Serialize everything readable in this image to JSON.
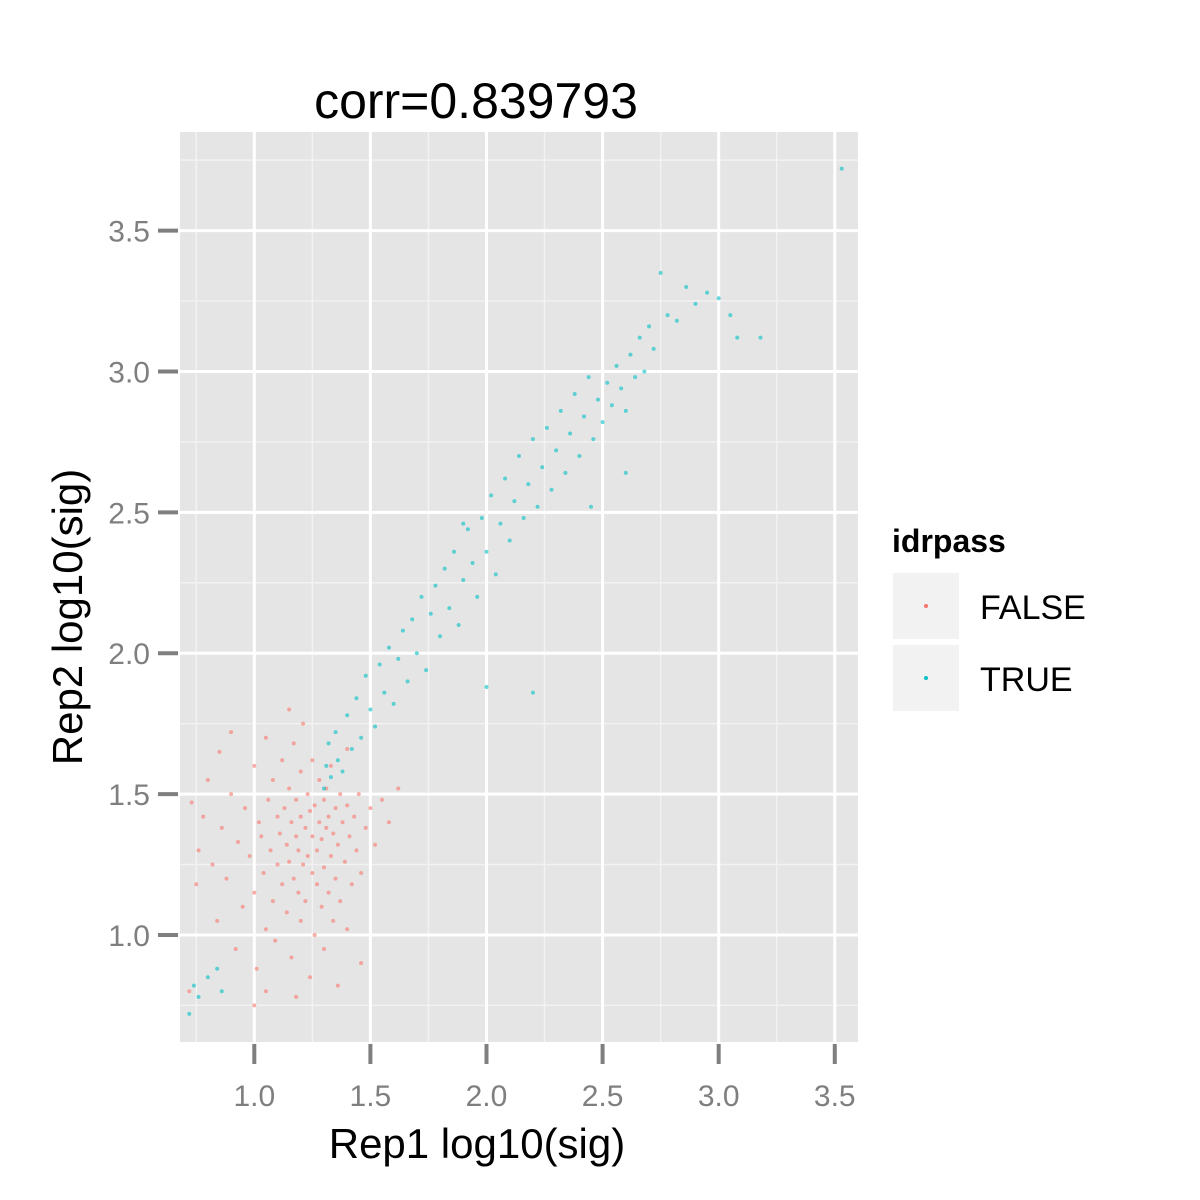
{
  "chart_data": {
    "type": "scatter",
    "title": "corr=0.839793",
    "xlabel": "Rep1 log10(sig)",
    "ylabel": "Rep2 log10(sig)",
    "xlim": [
      0.68,
      3.6
    ],
    "ylim": [
      0.62,
      3.85
    ],
    "x_ticks": [
      1.0,
      1.5,
      2.0,
      2.5,
      3.0,
      3.5
    ],
    "x_tick_labels": [
      "1.0",
      "1.5",
      "2.0",
      "2.5",
      "3.0",
      "3.5"
    ],
    "y_ticks": [
      1.0,
      1.5,
      2.0,
      2.5,
      3.0,
      3.5
    ],
    "y_tick_labels": [
      "1.0",
      "1.5",
      "2.0",
      "2.5",
      "3.0",
      "3.5"
    ],
    "grid": true,
    "legend": {
      "title": "idrpass",
      "placement": "right",
      "entries": [
        {
          "label": "FALSE",
          "color": "#F8766D"
        },
        {
          "label": "TRUE",
          "color": "#00BFC4"
        }
      ]
    },
    "series": [
      {
        "name": "FALSE",
        "color": "#F8766D",
        "points": [
          [
            0.72,
            0.8
          ],
          [
            0.73,
            1.47
          ],
          [
            0.75,
            1.18
          ],
          [
            0.76,
            1.3
          ],
          [
            0.78,
            1.42
          ],
          [
            0.8,
            1.55
          ],
          [
            0.82,
            1.25
          ],
          [
            0.84,
            1.05
          ],
          [
            0.85,
            1.65
          ],
          [
            0.86,
            1.38
          ],
          [
            0.88,
            1.2
          ],
          [
            0.9,
            1.5
          ],
          [
            0.92,
            0.95
          ],
          [
            0.93,
            1.33
          ],
          [
            0.95,
            1.1
          ],
          [
            0.96,
            1.45
          ],
          [
            0.98,
            1.28
          ],
          [
            1.0,
            1.6
          ],
          [
            1.0,
            1.15
          ],
          [
            1.01,
            0.88
          ],
          [
            1.02,
            1.4
          ],
          [
            1.03,
            1.35
          ],
          [
            1.04,
            1.22
          ],
          [
            1.05,
            1.7
          ],
          [
            1.05,
            1.02
          ],
          [
            1.06,
            1.48
          ],
          [
            1.07,
            1.3
          ],
          [
            1.08,
            1.12
          ],
          [
            1.08,
            1.55
          ],
          [
            1.09,
            0.98
          ],
          [
            1.1,
            1.42
          ],
          [
            1.1,
            1.25
          ],
          [
            1.11,
            1.36
          ],
          [
            1.12,
            1.62
          ],
          [
            1.12,
            1.18
          ],
          [
            1.13,
            1.45
          ],
          [
            1.14,
            1.08
          ],
          [
            1.14,
            1.32
          ],
          [
            1.15,
            1.52
          ],
          [
            1.15,
            1.26
          ],
          [
            1.16,
            1.4
          ],
          [
            1.16,
            0.92
          ],
          [
            1.17,
            1.68
          ],
          [
            1.17,
            1.2
          ],
          [
            1.18,
            1.35
          ],
          [
            1.18,
            1.48
          ],
          [
            1.19,
            1.15
          ],
          [
            1.19,
            1.3
          ],
          [
            1.2,
            1.58
          ],
          [
            1.2,
            1.05
          ],
          [
            1.2,
            1.42
          ],
          [
            1.21,
            1.25
          ],
          [
            1.21,
            1.75
          ],
          [
            1.22,
            1.38
          ],
          [
            1.22,
            1.12
          ],
          [
            1.23,
            1.5
          ],
          [
            1.23,
            1.28
          ],
          [
            1.24,
            0.85
          ],
          [
            1.24,
            1.44
          ],
          [
            1.25,
            1.22
          ],
          [
            1.25,
            1.62
          ],
          [
            1.25,
            1.35
          ],
          [
            1.26,
            1.0
          ],
          [
            1.26,
            1.46
          ],
          [
            1.27,
            1.3
          ],
          [
            1.27,
            1.18
          ],
          [
            1.28,
            1.55
          ],
          [
            1.28,
            1.4
          ],
          [
            1.29,
            1.1
          ],
          [
            1.29,
            1.34
          ],
          [
            1.3,
            1.48
          ],
          [
            1.3,
            1.24
          ],
          [
            1.3,
            0.95
          ],
          [
            1.31,
            1.38
          ],
          [
            1.31,
            1.52
          ],
          [
            1.32,
            1.15
          ],
          [
            1.32,
            1.42
          ],
          [
            1.33,
            1.28
          ],
          [
            1.33,
            1.6
          ],
          [
            1.34,
            1.36
          ],
          [
            1.34,
            1.05
          ],
          [
            1.35,
            1.45
          ],
          [
            1.35,
            1.2
          ],
          [
            1.36,
            1.32
          ],
          [
            1.37,
            1.5
          ],
          [
            1.37,
            1.12
          ],
          [
            1.38,
            1.4
          ],
          [
            1.39,
            1.26
          ],
          [
            1.4,
            1.46
          ],
          [
            1.4,
            1.02
          ],
          [
            1.41,
            1.35
          ],
          [
            1.42,
            1.18
          ],
          [
            1.43,
            1.42
          ],
          [
            1.44,
            1.3
          ],
          [
            1.45,
            1.5
          ],
          [
            1.46,
            1.22
          ],
          [
            1.48,
            1.38
          ],
          [
            1.5,
            1.45
          ],
          [
            1.52,
            1.32
          ],
          [
            1.55,
            1.48
          ],
          [
            1.58,
            1.4
          ],
          [
            1.62,
            1.52
          ],
          [
            1.46,
            0.9
          ],
          [
            1.4,
            1.66
          ],
          [
            1.15,
            1.8
          ],
          [
            0.9,
            1.72
          ],
          [
            1.05,
            0.8
          ],
          [
            1.18,
            0.78
          ],
          [
            1.36,
            0.82
          ],
          [
            1.0,
            0.75
          ]
        ]
      },
      {
        "name": "TRUE",
        "color": "#00BFC4",
        "points": [
          [
            0.72,
            0.72
          ],
          [
            0.74,
            0.82
          ],
          [
            0.76,
            0.78
          ],
          [
            0.8,
            0.85
          ],
          [
            0.84,
            0.88
          ],
          [
            0.86,
            0.8
          ],
          [
            1.3,
            1.52
          ],
          [
            1.31,
            1.6
          ],
          [
            1.32,
            1.68
          ],
          [
            1.33,
            1.56
          ],
          [
            1.35,
            1.72
          ],
          [
            1.36,
            1.62
          ],
          [
            1.38,
            1.58
          ],
          [
            1.4,
            1.78
          ],
          [
            1.42,
            1.66
          ],
          [
            1.44,
            1.84
          ],
          [
            1.46,
            1.7
          ],
          [
            1.48,
            1.92
          ],
          [
            1.5,
            1.8
          ],
          [
            1.52,
            1.74
          ],
          [
            1.54,
            1.96
          ],
          [
            1.56,
            1.86
          ],
          [
            1.58,
            2.02
          ],
          [
            1.6,
            1.82
          ],
          [
            1.62,
            1.98
          ],
          [
            1.64,
            2.08
          ],
          [
            1.66,
            1.9
          ],
          [
            1.68,
            2.12
          ],
          [
            1.7,
            2.0
          ],
          [
            1.72,
            2.2
          ],
          [
            1.74,
            1.94
          ],
          [
            1.76,
            2.14
          ],
          [
            1.78,
            2.24
          ],
          [
            1.8,
            2.06
          ],
          [
            1.82,
            2.3
          ],
          [
            1.84,
            2.16
          ],
          [
            1.86,
            2.36
          ],
          [
            1.88,
            2.1
          ],
          [
            1.9,
            2.26
          ],
          [
            1.92,
            2.44
          ],
          [
            1.94,
            2.32
          ],
          [
            1.96,
            2.2
          ],
          [
            1.98,
            2.48
          ],
          [
            2.0,
            2.36
          ],
          [
            2.02,
            2.56
          ],
          [
            2.04,
            2.28
          ],
          [
            2.06,
            2.46
          ],
          [
            2.08,
            2.62
          ],
          [
            2.1,
            2.4
          ],
          [
            2.12,
            2.54
          ],
          [
            2.14,
            2.7
          ],
          [
            2.16,
            2.48
          ],
          [
            2.18,
            2.6
          ],
          [
            2.2,
            2.76
          ],
          [
            2.22,
            2.52
          ],
          [
            2.24,
            2.66
          ],
          [
            2.26,
            2.8
          ],
          [
            2.28,
            2.58
          ],
          [
            2.3,
            2.72
          ],
          [
            2.32,
            2.86
          ],
          [
            2.34,
            2.64
          ],
          [
            2.36,
            2.78
          ],
          [
            2.38,
            2.92
          ],
          [
            2.4,
            2.7
          ],
          [
            2.42,
            2.84
          ],
          [
            2.44,
            2.98
          ],
          [
            2.46,
            2.76
          ],
          [
            2.48,
            2.9
          ],
          [
            2.5,
            2.82
          ],
          [
            2.52,
            2.96
          ],
          [
            2.54,
            2.88
          ],
          [
            2.56,
            3.02
          ],
          [
            2.58,
            2.94
          ],
          [
            2.6,
            2.86
          ],
          [
            2.62,
            3.06
          ],
          [
            2.64,
            2.98
          ],
          [
            2.66,
            3.12
          ],
          [
            2.68,
            3.0
          ],
          [
            2.7,
            3.16
          ],
          [
            2.72,
            3.08
          ],
          [
            2.75,
            3.35
          ],
          [
            2.78,
            3.2
          ],
          [
            2.82,
            3.18
          ],
          [
            2.86,
            3.3
          ],
          [
            2.9,
            3.24
          ],
          [
            2.95,
            3.28
          ],
          [
            3.0,
            3.26
          ],
          [
            3.05,
            3.2
          ],
          [
            3.08,
            3.12
          ],
          [
            3.18,
            3.12
          ],
          [
            3.53,
            3.72
          ],
          [
            2.0,
            1.88
          ],
          [
            1.9,
            2.46
          ],
          [
            2.2,
            1.86
          ],
          [
            2.45,
            2.52
          ],
          [
            2.6,
            2.64
          ]
        ]
      }
    ]
  }
}
